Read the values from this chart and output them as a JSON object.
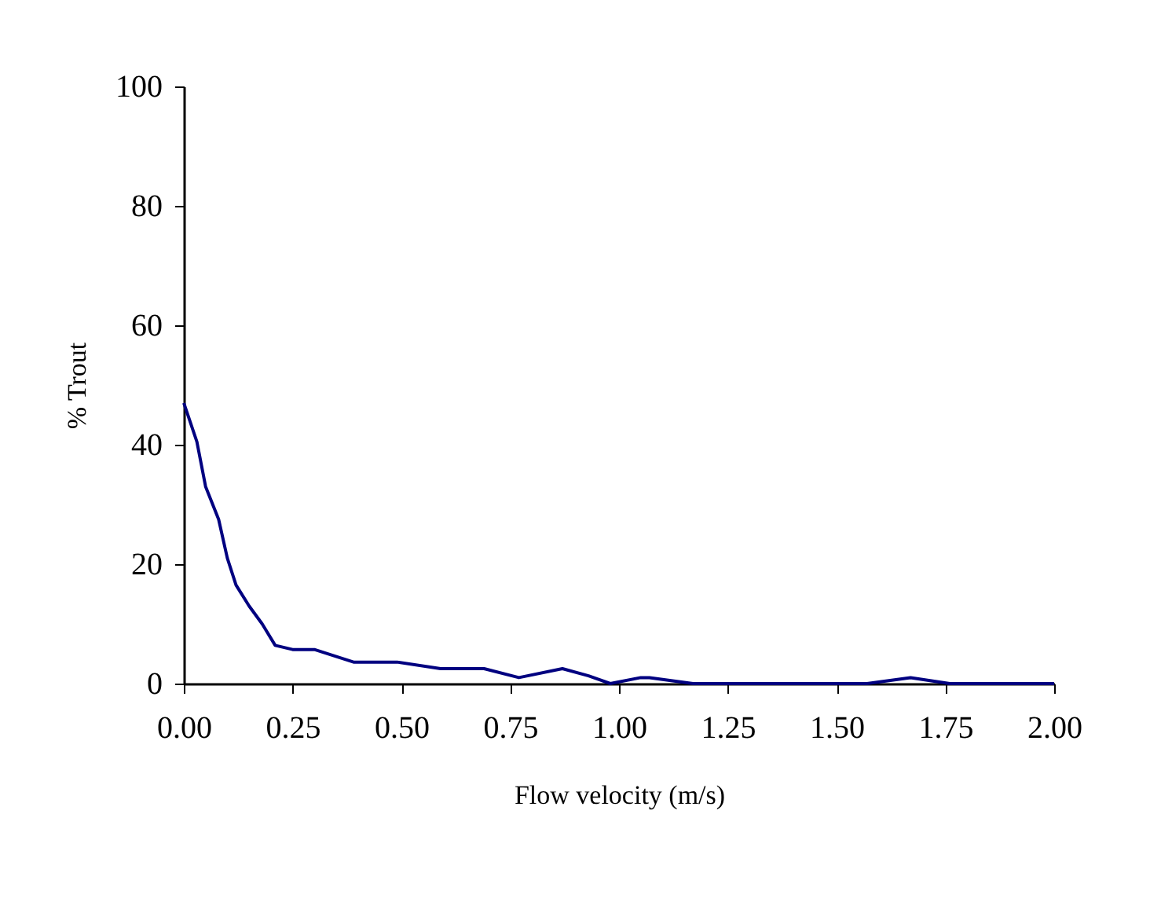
{
  "chart_data": {
    "type": "line",
    "xlabel": "Flow velocity (m/s)",
    "ylabel": "% Trout",
    "xlim": [
      0,
      2
    ],
    "xticks": [
      {
        "value": 0,
        "label": "0.00"
      },
      {
        "value": 0.25,
        "label": "0.25"
      },
      {
        "value": 0.5,
        "label": "0.50"
      },
      {
        "value": 0.75,
        "label": "0.75"
      },
      {
        "value": 1,
        "label": "1.00"
      },
      {
        "value": 1.25,
        "label": "1.25"
      },
      {
        "value": 1.5,
        "label": "1.50"
      },
      {
        "value": 1.75,
        "label": "1.75"
      },
      {
        "value": 2,
        "label": "2.00"
      }
    ],
    "ylim": [
      0,
      100
    ],
    "yticks": [
      0,
      20,
      40,
      60,
      80,
      100
    ],
    "grid": false,
    "marker": "none",
    "line_style": "solid",
    "series": [
      {
        "color": "#000080",
        "x": [
          0,
          0.03,
          0.05,
          0.08,
          0.1,
          0.12,
          0.15,
          0.18,
          0.21,
          0.25,
          0.3,
          0.39,
          0.49,
          0.59,
          0.69,
          0.77,
          0.87,
          0.93,
          0.98,
          1.05,
          1.07,
          1.17,
          1.57,
          1.67,
          1.76,
          2.0
        ],
        "values": [
          47,
          40.5,
          33,
          27.5,
          21,
          16.5,
          13,
          10,
          6.4,
          5.7,
          5.7,
          3.6,
          3.6,
          2.5,
          2.5,
          1,
          2.5,
          1.3,
          0,
          1,
          1,
          0,
          0,
          1,
          0,
          0
        ]
      }
    ]
  }
}
